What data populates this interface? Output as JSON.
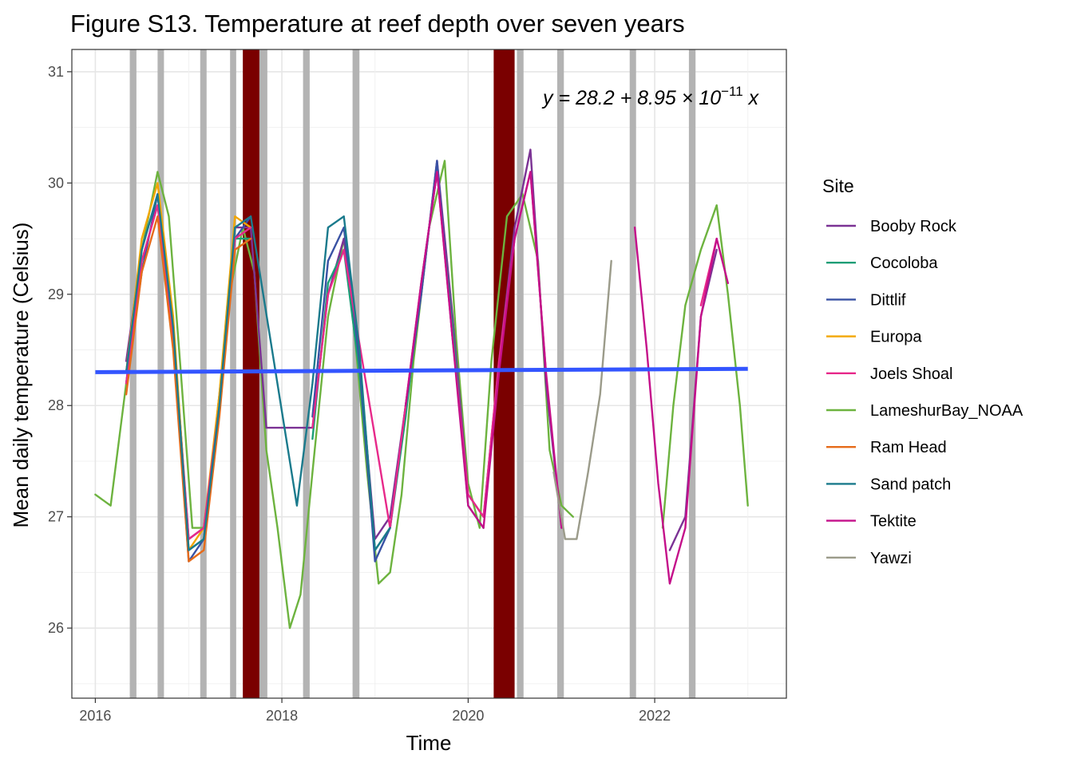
{
  "chart_data": {
    "type": "line",
    "title": "Figure S13. Temperature at reef depth over seven years",
    "xlabel": "Time",
    "ylabel": "Mean daily temperature (Celsius)",
    "xlim": [
      "2015-10-01",
      "2023-06-01"
    ],
    "ylim": [
      25.37,
      31.2
    ],
    "x_ticks": [
      "2016",
      "2018",
      "2020",
      "2022"
    ],
    "y_ticks": [
      26,
      27,
      28,
      29,
      30,
      31
    ],
    "grid": true,
    "legend": {
      "title": "Site",
      "placement": "right",
      "entries": [
        "Booby Rock",
        "Cocoloba",
        "Dittlif",
        "Europa",
        "Joels Shoal",
        "LameshurBay_NOAA",
        "Ram Head",
        "Sand patch",
        "Tektite",
        "Yawzi"
      ]
    },
    "colors": {
      "Booby Rock": "#7b3294",
      "Cocoloba": "#1b9e77",
      "Dittlif": "#3952a4",
      "Europa": "#f2a600",
      "Joels Shoal": "#e7298a",
      "LameshurBay_NOAA": "#6db33f",
      "Ram Head": "#e66b1a",
      "Sand patch": "#1a7a8c",
      "Tektite": "#c4108a",
      "Yawzi": "#9b9b8a",
      "trend": "#3355ff",
      "band_gray": "#b3b3b3",
      "band_dark": "#7a0000"
    },
    "trend_line": {
      "equation": {
        "prefix": "y = 28.2 + 8.95 × 10",
        "exponent": "−11",
        "suffix": " x"
      },
      "points": [
        {
          "x": "2016-01-01",
          "y": 28.3
        },
        {
          "x": "2023-01-01",
          "y": 28.33
        }
      ]
    },
    "shaded_periods": [
      {
        "start": "2016-05-15",
        "end": "2016-06-10",
        "color": "gray"
      },
      {
        "start": "2016-09-01",
        "end": "2016-09-26",
        "color": "gray"
      },
      {
        "start": "2017-02-15",
        "end": "2017-03-12",
        "color": "gray"
      },
      {
        "start": "2017-06-12",
        "end": "2017-07-06",
        "color": "gray"
      },
      {
        "start": "2017-08-01",
        "end": "2017-10-05",
        "color": "dark"
      },
      {
        "start": "2017-10-05",
        "end": "2017-11-05",
        "color": "gray"
      },
      {
        "start": "2018-03-25",
        "end": "2018-04-20",
        "color": "gray"
      },
      {
        "start": "2018-10-05",
        "end": "2018-11-01",
        "color": "gray"
      },
      {
        "start": "2020-04-10",
        "end": "2020-07-01",
        "color": "dark"
      },
      {
        "start": "2020-07-10",
        "end": "2020-08-05",
        "color": "gray"
      },
      {
        "start": "2020-12-15",
        "end": "2021-01-10",
        "color": "gray"
      },
      {
        "start": "2021-09-25",
        "end": "2021-10-20",
        "color": "gray"
      },
      {
        "start": "2022-05-15",
        "end": "2022-06-10",
        "color": "gray"
      }
    ],
    "series": [
      {
        "name": "LameshurBay_NOAA",
        "x": [
          "2016-01-01",
          "2016-03-01",
          "2016-05-01",
          "2016-07-01",
          "2016-09-01",
          "2016-10-15",
          "2016-12-01",
          "2017-01-15",
          "2017-03-01",
          "2017-04-15",
          "2017-06-01",
          "2017-08-01",
          "2017-09-15",
          "2017-11-01",
          "2017-12-15",
          "2018-02-01",
          "2018-03-15",
          "2018-05-01",
          "2018-07-01",
          "2018-09-01",
          "2018-10-15",
          "2018-12-01",
          "2019-01-15",
          "2019-03-01",
          "2019-04-15",
          "2019-06-01",
          "2019-08-01",
          "2019-10-01",
          "2019-11-15",
          "2020-01-01",
          "2020-02-15",
          "2020-04-01",
          "2020-06-01",
          "2020-08-01",
          "2020-10-01",
          "2020-11-15",
          "2021-01-01",
          "2021-02-15",
          "2022-02-01",
          "2022-03-15",
          "2022-05-01",
          "2022-07-01",
          "2022-09-01",
          "2022-10-15",
          "2022-12-01",
          "2023-01-01"
        ],
        "y": [
          27.2,
          27.1,
          28.2,
          29.4,
          30.1,
          29.7,
          28.3,
          26.9,
          26.9,
          27.6,
          28.9,
          29.6,
          29.2,
          27.6,
          26.9,
          26.0,
          26.3,
          27.4,
          28.8,
          29.5,
          28.6,
          27.4,
          26.4,
          26.5,
          27.2,
          28.4,
          29.6,
          30.2,
          28.6,
          27.3,
          26.9,
          28.4,
          29.7,
          29.9,
          29.3,
          27.6,
          27.1,
          27.0,
          26.9,
          28.0,
          28.9,
          29.4,
          29.8,
          29.0,
          28.0,
          27.1
        ]
      },
      {
        "name": "Booby Rock",
        "x": [
          "2016-05-01",
          "2016-07-01",
          "2016-09-01",
          "2016-11-01",
          "2017-01-01",
          "2017-03-01",
          "2017-05-01",
          "2017-07-01",
          "2017-09-01",
          "2017-11-01",
          "2018-05-01",
          "2018-07-01",
          "2018-09-01",
          "2018-11-01",
          "2019-01-01",
          "2019-03-01",
          "2019-05-01",
          "2019-07-01",
          "2019-09-01",
          "2019-11-01",
          "2020-01-01",
          "2020-03-01",
          "2020-05-01",
          "2020-07-01",
          "2020-09-01",
          "2020-11-01",
          "2021-01-01",
          "2022-03-01",
          "2022-05-01",
          "2022-07-01",
          "2022-09-01"
        ],
        "y": [
          28.4,
          29.4,
          29.9,
          28.7,
          26.8,
          26.9,
          28.0,
          29.6,
          29.6,
          27.8,
          27.8,
          29.0,
          29.5,
          28.4,
          26.8,
          27.0,
          28.0,
          29.0,
          30.2,
          28.8,
          27.2,
          27.0,
          28.4,
          29.6,
          30.3,
          28.2,
          26.9,
          26.7,
          27.0,
          28.8,
          29.4
        ]
      },
      {
        "name": "Cocoloba",
        "x": [
          "2016-05-01",
          "2016-07-01",
          "2016-09-01",
          "2016-11-01",
          "2017-01-01",
          "2017-03-01",
          "2017-05-01",
          "2017-07-01",
          "2017-09-01",
          "2018-05-01",
          "2018-07-01",
          "2018-09-01",
          "2018-11-01",
          "2019-01-01",
          "2019-03-01",
          "2019-05-01",
          "2019-07-01",
          "2019-09-01",
          "2019-11-01",
          "2020-01-01",
          "2020-03-01"
        ],
        "y": [
          28.3,
          29.3,
          29.8,
          28.6,
          26.7,
          26.8,
          28.0,
          29.5,
          29.5,
          27.7,
          29.1,
          29.4,
          28.3,
          26.7,
          26.9,
          27.9,
          29.1,
          30.1,
          28.7,
          27.1,
          26.9
        ]
      },
      {
        "name": "Dittlif",
        "x": [
          "2016-05-01",
          "2016-07-01",
          "2016-09-01",
          "2016-11-01",
          "2017-01-01",
          "2017-03-01",
          "2017-05-01",
          "2017-07-01",
          "2017-09-01",
          "2018-05-01",
          "2018-07-01",
          "2018-09-01",
          "2018-11-01",
          "2019-01-01",
          "2019-03-01",
          "2019-05-01",
          "2019-07-01",
          "2019-09-01",
          "2019-11-01"
        ],
        "y": [
          28.2,
          29.2,
          29.9,
          28.6,
          26.6,
          26.8,
          28.1,
          29.5,
          29.7,
          27.9,
          29.3,
          29.6,
          28.4,
          26.6,
          26.9,
          28.0,
          29.0,
          30.2,
          28.6
        ]
      },
      {
        "name": "Europa",
        "x": [
          "2016-05-01",
          "2016-07-01",
          "2016-09-01",
          "2016-11-01",
          "2017-01-01",
          "2017-03-01",
          "2017-05-01",
          "2017-07-01",
          "2017-09-01"
        ],
        "y": [
          28.3,
          29.5,
          30.0,
          28.8,
          26.7,
          26.9,
          28.1,
          29.7,
          29.6
        ]
      },
      {
        "name": "Joels Shoal",
        "x": [
          "2016-05-01",
          "2016-07-01",
          "2016-09-01",
          "2016-11-01",
          "2017-01-01",
          "2017-03-01",
          "2017-05-01",
          "2017-07-01",
          "2017-09-01",
          "2018-05-01",
          "2018-07-01",
          "2018-09-01",
          "2019-03-01",
          "2019-05-01",
          "2019-07-01",
          "2019-09-01",
          "2019-11-01",
          "2020-01-01",
          "2020-03-01",
          "2020-05-01",
          "2020-07-01",
          "2020-09-01",
          "2020-11-01",
          "2022-07-01",
          "2022-09-01"
        ],
        "y": [
          28.2,
          29.3,
          29.8,
          28.6,
          26.8,
          26.9,
          28.0,
          29.5,
          29.6,
          27.8,
          29.0,
          29.4,
          26.9,
          28.0,
          29.1,
          30.1,
          28.6,
          27.2,
          27.0,
          28.4,
          29.5,
          30.1,
          28.3,
          28.9,
          29.5
        ]
      },
      {
        "name": "Ram Head",
        "x": [
          "2016-05-01",
          "2016-07-01",
          "2016-09-01",
          "2016-11-01",
          "2017-01-01",
          "2017-03-01",
          "2017-05-01",
          "2017-07-01",
          "2017-09-01"
        ],
        "y": [
          28.1,
          29.2,
          29.7,
          28.5,
          26.6,
          26.7,
          27.9,
          29.4,
          29.5
        ]
      },
      {
        "name": "Sand patch",
        "x": [
          "2016-05-01",
          "2016-07-01",
          "2016-09-01",
          "2016-11-01",
          "2017-01-01",
          "2017-03-01",
          "2017-05-01",
          "2017-07-01",
          "2017-09-01",
          "2018-03-01",
          "2018-05-01",
          "2018-07-01",
          "2018-09-01",
          "2018-11-01",
          "2019-01-01",
          "2019-03-01"
        ],
        "y": [
          28.3,
          29.4,
          29.9,
          28.7,
          26.7,
          26.8,
          28.0,
          29.6,
          29.7,
          27.1,
          28.2,
          29.6,
          29.7,
          28.5,
          26.7,
          26.9
        ]
      },
      {
        "name": "Tektite",
        "x": [
          "2019-05-01",
          "2019-07-01",
          "2019-09-01",
          "2019-11-01",
          "2020-01-01",
          "2020-03-01",
          "2020-05-01",
          "2020-07-01",
          "2020-09-01",
          "2020-11-01",
          "2021-01-01",
          "2021-10-15",
          "2021-12-01",
          "2022-01-15",
          "2022-03-01",
          "2022-05-01",
          "2022-07-01",
          "2022-09-01",
          "2022-10-15"
        ],
        "y": [
          28.0,
          29.1,
          30.1,
          28.6,
          27.1,
          26.9,
          28.3,
          29.5,
          30.1,
          28.3,
          26.9,
          29.6,
          28.5,
          27.3,
          26.4,
          26.9,
          28.8,
          29.5,
          29.1
        ]
      },
      {
        "name": "Yawzi",
        "x": [
          "2020-12-01",
          "2021-01-15",
          "2021-03-01",
          "2021-04-15",
          "2021-06-01",
          "2021-07-15"
        ],
        "y": [
          27.4,
          26.8,
          26.8,
          27.4,
          28.1,
          29.3
        ]
      }
    ]
  }
}
